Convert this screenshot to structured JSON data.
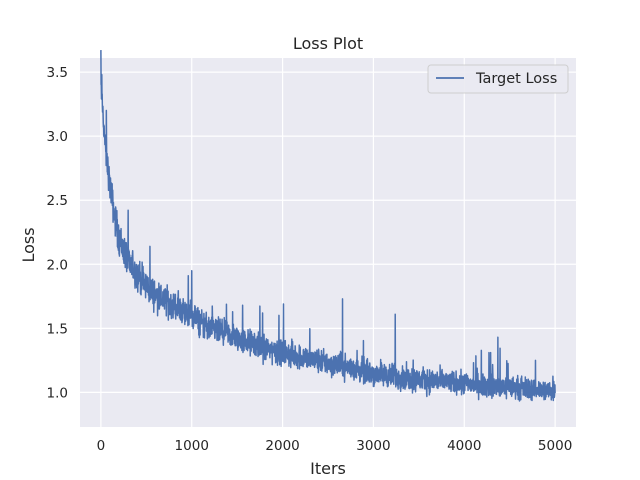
{
  "chart_data": {
    "type": "line",
    "title": "Loss Plot",
    "xlabel": "Iters",
    "ylabel": "Loss",
    "xlim": [
      -230,
      5230
    ],
    "ylim": [
      0.73,
      3.61
    ],
    "xticks": [
      0,
      1000,
      2000,
      3000,
      4000,
      5000
    ],
    "xtick_labels": [
      "0",
      "1000",
      "2000",
      "3000",
      "4000",
      "5000"
    ],
    "yticks": [
      1.0,
      1.5,
      2.0,
      2.5,
      3.0,
      3.5
    ],
    "ytick_labels": [
      "1.0",
      "1.5",
      "2.0",
      "2.5",
      "3.0",
      "3.5"
    ],
    "grid": true,
    "legend_position": "top-right",
    "series": [
      {
        "name": "Target Loss",
        "color": "#4c72b0",
        "x_start": 0,
        "x_end": 5000,
        "trend_x": [
          0,
          20,
          50,
          100,
          150,
          200,
          300,
          400,
          500,
          600,
          700,
          800,
          900,
          1000,
          1200,
          1500,
          1800,
          2000,
          2500,
          3000,
          3500,
          4000,
          4500,
          5000
        ],
        "trend_y": [
          3.4,
          3.2,
          2.9,
          2.62,
          2.38,
          2.2,
          2.02,
          1.92,
          1.83,
          1.76,
          1.72,
          1.68,
          1.64,
          1.6,
          1.5,
          1.42,
          1.35,
          1.31,
          1.23,
          1.15,
          1.1,
          1.07,
          1.04,
          1.01
        ],
        "noise_amplitude": [
          0.15,
          0.16,
          0.17,
          0.18,
          0.19,
          0.19,
          0.18,
          0.18,
          0.17,
          0.17,
          0.16,
          0.16,
          0.16,
          0.16,
          0.15,
          0.15,
          0.15,
          0.15,
          0.14,
          0.14,
          0.14,
          0.13,
          0.13,
          0.12
        ],
        "spikes": [
          [
            10,
            3.48
          ],
          [
            60,
            3.2
          ],
          [
            260,
            2.2
          ],
          [
            540,
            2.14
          ],
          [
            1000,
            1.95
          ],
          [
            1450,
            1.63
          ],
          [
            1560,
            1.68
          ],
          [
            1780,
            1.62
          ],
          [
            2010,
            1.69
          ],
          [
            2660,
            1.73
          ],
          [
            3240,
            1.61
          ],
          [
            4370,
            1.43
          ]
        ]
      }
    ]
  }
}
